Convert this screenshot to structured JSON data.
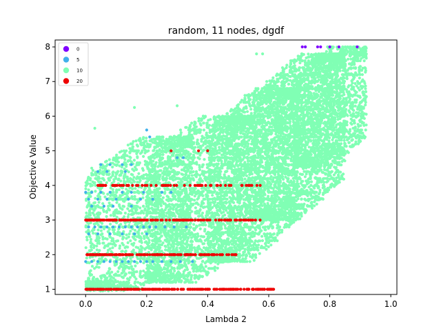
{
  "chart_data": {
    "type": "scatter",
    "title": "random, 11 nodes, dgdf",
    "xlabel": "Lambda 2",
    "ylabel": "Objective Value",
    "xlim": [
      -0.1,
      1.02
    ],
    "ylim": [
      0.85,
      8.2
    ],
    "xticks": [
      "0.0",
      "0.2",
      "0.4",
      "0.6",
      "0.8",
      "1.0"
    ],
    "xtick_values": [
      0.0,
      0.2,
      0.4,
      0.6,
      0.8,
      1.0
    ],
    "yticks": [
      "1",
      "2",
      "3",
      "4",
      "5",
      "6",
      "7",
      "8"
    ],
    "ytick_values": [
      1,
      2,
      3,
      4,
      5,
      6,
      7,
      8
    ],
    "grid": false,
    "legend_position": "top-left",
    "series": [
      {
        "name": "10",
        "color": "#80ffb4",
        "clusters": [
          {
            "x": [
              0.0,
              0.35
            ],
            "y": [
              0.95,
              5.4
            ],
            "count": 2200
          },
          {
            "x": [
              0.2,
              0.55
            ],
            "y": [
              1.2,
              6.0
            ],
            "count": 2600
          },
          {
            "x": [
              0.4,
              0.7
            ],
            "y": [
              1.8,
              6.8
            ],
            "count": 2600
          },
          {
            "x": [
              0.55,
              0.85
            ],
            "y": [
              3.0,
              7.8
            ],
            "count": 3000
          },
          {
            "x": [
              0.68,
              0.92
            ],
            "y": [
              4.5,
              8.0
            ],
            "count": 1600
          }
        ],
        "points": [
          {
            "x": 0.16,
            "y": 6.25
          },
          {
            "x": 0.03,
            "y": 5.65
          },
          {
            "x": 0.56,
            "y": 7.8
          },
          {
            "x": 0.58,
            "y": 7.8
          },
          {
            "x": 0.3,
            "y": 6.3
          },
          {
            "x": 0.02,
            "y": 4.5
          }
        ]
      },
      {
        "name": "5",
        "color": "#40b0eb",
        "points": [
          {
            "x": 0.2,
            "y": 5.6
          },
          {
            "x": 0.21,
            "y": 5.4
          },
          {
            "x": 0.05,
            "y": 4.6
          },
          {
            "x": 0.08,
            "y": 4.6
          },
          {
            "x": 0.12,
            "y": 4.6
          },
          {
            "x": 0.15,
            "y": 4.6
          },
          {
            "x": 0.04,
            "y": 4.4
          },
          {
            "x": 0.07,
            "y": 4.4
          },
          {
            "x": 0.13,
            "y": 4.4
          },
          {
            "x": 0.3,
            "y": 4.8
          },
          {
            "x": 0.32,
            "y": 4.8
          },
          {
            "x": 0.0,
            "y": 3.8
          },
          {
            "x": 0.02,
            "y": 3.8
          },
          {
            "x": 0.05,
            "y": 3.8
          },
          {
            "x": 0.08,
            "y": 3.8
          },
          {
            "x": 0.12,
            "y": 3.8
          },
          {
            "x": 0.15,
            "y": 3.8
          },
          {
            "x": 0.19,
            "y": 3.8
          },
          {
            "x": 0.25,
            "y": 3.8
          },
          {
            "x": 0.28,
            "y": 3.8
          },
          {
            "x": 0.01,
            "y": 3.6
          },
          {
            "x": 0.04,
            "y": 3.6
          },
          {
            "x": 0.07,
            "y": 3.6
          },
          {
            "x": 0.1,
            "y": 3.6
          },
          {
            "x": 0.14,
            "y": 3.6
          },
          {
            "x": 0.18,
            "y": 3.6
          },
          {
            "x": 0.22,
            "y": 3.6
          },
          {
            "x": 0.02,
            "y": 3.4
          },
          {
            "x": 0.06,
            "y": 3.4
          },
          {
            "x": 0.09,
            "y": 3.4
          },
          {
            "x": 0.15,
            "y": 3.4
          },
          {
            "x": 0.01,
            "y": 2.8
          },
          {
            "x": 0.03,
            "y": 2.8
          },
          {
            "x": 0.05,
            "y": 2.8
          },
          {
            "x": 0.07,
            "y": 2.8
          },
          {
            "x": 0.09,
            "y": 2.8
          },
          {
            "x": 0.11,
            "y": 2.8
          },
          {
            "x": 0.13,
            "y": 2.8
          },
          {
            "x": 0.15,
            "y": 2.8
          },
          {
            "x": 0.17,
            "y": 2.8
          },
          {
            "x": 0.19,
            "y": 2.8
          },
          {
            "x": 0.21,
            "y": 2.8
          },
          {
            "x": 0.23,
            "y": 2.8
          },
          {
            "x": 0.26,
            "y": 2.8
          },
          {
            "x": 0.29,
            "y": 2.8
          },
          {
            "x": 0.33,
            "y": 2.8
          },
          {
            "x": 0.01,
            "y": 2.6
          },
          {
            "x": 0.04,
            "y": 2.6
          },
          {
            "x": 0.08,
            "y": 2.6
          },
          {
            "x": 0.12,
            "y": 2.6
          },
          {
            "x": 0.16,
            "y": 2.6
          },
          {
            "x": 0.2,
            "y": 2.6
          },
          {
            "x": 0.0,
            "y": 1.8
          },
          {
            "x": 0.02,
            "y": 1.8
          },
          {
            "x": 0.04,
            "y": 1.8
          },
          {
            "x": 0.06,
            "y": 1.8
          },
          {
            "x": 0.08,
            "y": 1.8
          },
          {
            "x": 0.1,
            "y": 1.8
          },
          {
            "x": 0.12,
            "y": 1.8
          },
          {
            "x": 0.14,
            "y": 1.8
          },
          {
            "x": 0.16,
            "y": 1.8
          },
          {
            "x": 0.18,
            "y": 1.8
          },
          {
            "x": 0.2,
            "y": 1.8
          },
          {
            "x": 0.22,
            "y": 1.8
          },
          {
            "x": 0.25,
            "y": 1.8
          },
          {
            "x": 0.28,
            "y": 1.8
          },
          {
            "x": 0.31,
            "y": 1.8
          },
          {
            "x": 0.35,
            "y": 1.8
          },
          {
            "x": 0.72,
            "y": 8.0
          }
        ]
      },
      {
        "name": "20",
        "color": "#ee0000",
        "bands": [
          {
            "y": 1.0,
            "x": [
              0.0,
              0.62
            ],
            "count": 220
          },
          {
            "y": 2.0,
            "x": [
              0.0,
              0.5
            ],
            "count": 180
          },
          {
            "y": 3.0,
            "x": [
              0.0,
              0.58
            ],
            "count": 170
          },
          {
            "y": 4.0,
            "x": [
              0.04,
              0.58
            ],
            "count": 70
          }
        ],
        "points": [
          {
            "x": 0.37,
            "y": 5.0
          },
          {
            "x": 0.4,
            "y": 5.0
          },
          {
            "x": 0.28,
            "y": 5.0
          },
          {
            "x": 0.55,
            "y": 1.0
          },
          {
            "x": 0.6,
            "y": 1.0
          }
        ]
      },
      {
        "name": "0",
        "color": "#8000ff",
        "points": [
          {
            "x": 0.71,
            "y": 8.0
          },
          {
            "x": 0.72,
            "y": 8.0
          },
          {
            "x": 0.76,
            "y": 8.0
          },
          {
            "x": 0.77,
            "y": 8.0
          },
          {
            "x": 0.8,
            "y": 8.0
          },
          {
            "x": 0.83,
            "y": 8.0
          },
          {
            "x": 0.89,
            "y": 8.0
          }
        ]
      }
    ],
    "legend": [
      {
        "label": "0",
        "color": "#8000ff"
      },
      {
        "label": "5",
        "color": "#40b0eb"
      },
      {
        "label": "10",
        "color": "#80ffb4"
      },
      {
        "label": "20",
        "color": "#ee0000"
      }
    ]
  }
}
